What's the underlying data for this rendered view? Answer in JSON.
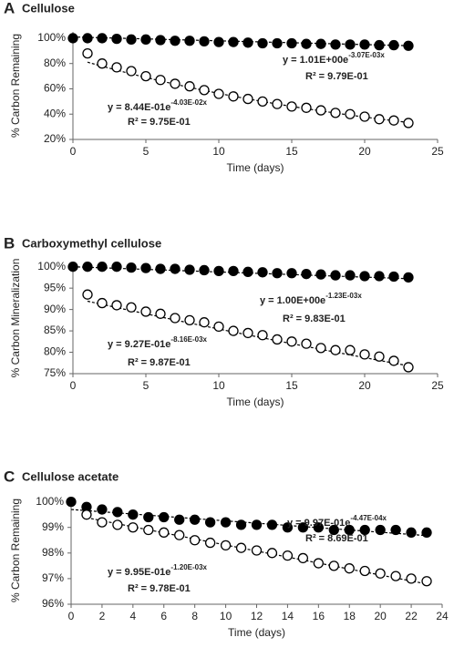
{
  "chart_data": [
    {
      "type": "scatter",
      "panel": "A",
      "title": "Cellulose",
      "x_label": "Time (days)",
      "y_label": "% Carbon Remaining",
      "x": [
        0,
        1,
        2,
        3,
        4,
        5,
        6,
        7,
        8,
        9,
        10,
        11,
        12,
        13,
        14,
        15,
        16,
        17,
        18,
        19,
        20,
        21,
        22,
        23
      ],
      "series": [
        {
          "color": "#000000",
          "values": [
            100,
            100,
            100,
            99.5,
            99,
            99,
            98.5,
            98,
            98,
            97.5,
            97,
            97,
            96.5,
            96,
            96,
            96,
            95.5,
            95.5,
            95,
            95,
            95,
            94.5,
            94.5,
            94
          ]
        },
        {
          "color": "#ffffff",
          "values": [
            null,
            88,
            80,
            77,
            74,
            70,
            67,
            64,
            62,
            59,
            56,
            54,
            52,
            50,
            48,
            46,
            45,
            43,
            41,
            40,
            38,
            36,
            35,
            33
          ]
        }
      ],
      "annotations": [
        {
          "equation": "y = 1.01E+00e",
          "exponent": "-3.07E-03x",
          "r2": "R² = 9.79E-01"
        },
        {
          "equation": "y = 8.44E-01e",
          "exponent": "-4.03E-02x",
          "r2": "R² = 9.75E-01"
        }
      ],
      "trendline": true,
      "xlim": [
        0,
        25
      ],
      "xticks": [
        0,
        5,
        10,
        15,
        20,
        25
      ],
      "ylim": [
        20,
        105
      ],
      "yticks": [
        {
          "value": 20,
          "label": "20%"
        },
        {
          "value": 40,
          "label": "40%"
        },
        {
          "value": 60,
          "label": "60%"
        },
        {
          "value": 80,
          "label": "80%"
        },
        {
          "value": 100,
          "label": "100%"
        }
      ]
    },
    {
      "type": "scatter",
      "panel": "B",
      "title": "Carboxymethyl cellulose",
      "x_label": "Time (days)",
      "y_label": "% Carbon Mineralization",
      "x": [
        0,
        1,
        2,
        3,
        4,
        5,
        6,
        7,
        8,
        9,
        10,
        11,
        12,
        13,
        14,
        15,
        16,
        17,
        18,
        19,
        20,
        21,
        22,
        23
      ],
      "series": [
        {
          "color": "#000000",
          "values": [
            100,
            100,
            100,
            100,
            99.8,
            99.7,
            99.5,
            99.5,
            99.3,
            99.2,
            99,
            99,
            98.8,
            98.7,
            98.5,
            98.5,
            98.3,
            98.2,
            98,
            98,
            97.8,
            97.8,
            97.7,
            97.5
          ]
        },
        {
          "color": "#ffffff",
          "values": [
            null,
            93.5,
            91.5,
            91,
            90.5,
            89.5,
            89,
            88,
            87.5,
            87,
            86,
            85,
            84.5,
            84,
            83,
            82.5,
            82,
            81,
            80.5,
            80.5,
            79.5,
            79,
            78,
            76.5
          ]
        }
      ],
      "annotations": [
        {
          "equation": "y = 1.00E+00e",
          "exponent": "-1.23E-03x",
          "r2": "R² = 9.83E-01"
        },
        {
          "equation": "y = 9.27E-01e",
          "exponent": "-8.16E-03x",
          "r2": "R² = 9.87E-01"
        }
      ],
      "trendline": true,
      "xlim": [
        0,
        25
      ],
      "xticks": [
        0,
        5,
        10,
        15,
        20,
        25
      ],
      "ylim": [
        75,
        101
      ],
      "yticks": [
        {
          "value": 75,
          "label": "75%"
        },
        {
          "value": 80,
          "label": "80%"
        },
        {
          "value": 85,
          "label": "85%"
        },
        {
          "value": 90,
          "label": "90%"
        },
        {
          "value": 95,
          "label": "95%"
        },
        {
          "value": 100,
          "label": "100%"
        }
      ]
    },
    {
      "type": "scatter",
      "panel": "C",
      "title": "Cellulose acetate",
      "x_label": "Time (days)",
      "y_label": "% Carbon Remaining",
      "x": [
        0,
        1,
        2,
        3,
        4,
        5,
        6,
        7,
        8,
        9,
        10,
        11,
        12,
        13,
        14,
        15,
        16,
        17,
        18,
        19,
        20,
        21,
        22,
        23
      ],
      "series": [
        {
          "color": "#000000",
          "values": [
            100,
            99.8,
            99.7,
            99.6,
            99.5,
            99.4,
            99.4,
            99.3,
            99.3,
            99.2,
            99.2,
            99.1,
            99.1,
            99.1,
            99.0,
            99.0,
            99.0,
            98.9,
            98.9,
            98.9,
            98.9,
            98.9,
            98.8,
            98.8
          ]
        },
        {
          "color": "#ffffff",
          "values": [
            null,
            99.5,
            99.2,
            99.1,
            99.0,
            98.9,
            98.8,
            98.7,
            98.5,
            98.4,
            98.3,
            98.2,
            98.1,
            98.0,
            97.9,
            97.8,
            97.6,
            97.5,
            97.4,
            97.3,
            97.2,
            97.1,
            97.0,
            96.9
          ]
        }
      ],
      "annotations": [
        {
          "equation": "y = 9.97E-01e",
          "exponent": "-4.47E-04x",
          "r2": "R² = 8.69E-01"
        },
        {
          "equation": "y = 9.95E-01e",
          "exponent": "-1.20E-03x",
          "r2": "R² = 9.78E-01"
        }
      ],
      "trendline": true,
      "xlim": [
        0,
        24
      ],
      "xticks": [
        0,
        2,
        4,
        6,
        8,
        10,
        12,
        14,
        16,
        18,
        20,
        22,
        24
      ],
      "ylim": [
        96,
        100.2
      ],
      "yticks": [
        {
          "value": 96,
          "label": "96%"
        },
        {
          "value": 97,
          "label": "97%"
        },
        {
          "value": 98,
          "label": "98%"
        },
        {
          "value": 99,
          "label": "99%"
        },
        {
          "value": 100,
          "label": "100%"
        }
      ]
    }
  ]
}
